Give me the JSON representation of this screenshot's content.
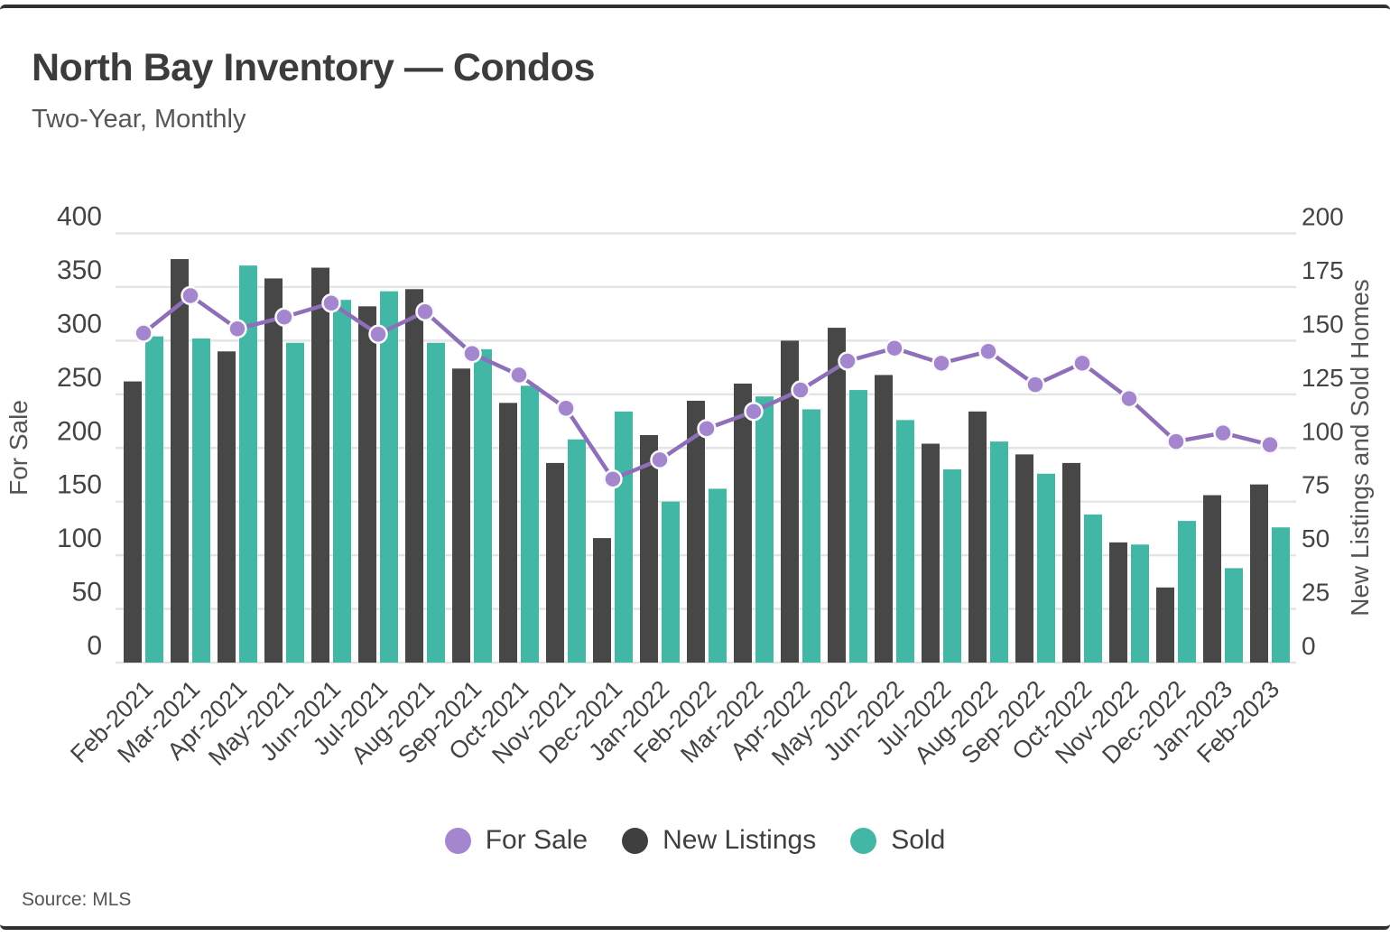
{
  "header": {
    "title": "North Bay Inventory — Condos",
    "subtitle": "Two-Year, Monthly"
  },
  "source_note": "Source: MLS",
  "legend": {
    "items": [
      {
        "label": "For Sale",
        "color": "#a486ce"
      },
      {
        "label": "New Listings",
        "color": "#3f3f3f"
      },
      {
        "label": "Sold",
        "color": "#43b7a6"
      }
    ]
  },
  "colors": {
    "bar_new_listings": "#474747",
    "bar_sold": "#43b7a6",
    "line_for_sale": "#8e6fb8",
    "dot_for_sale": "#a486ce",
    "dot_ring": "#fafafa",
    "grid": "#e4e4e4",
    "tick_text": "#444444",
    "axis_title_text": "#555555",
    "border": "#303030"
  },
  "chart_data": {
    "type": "combo_bar_line",
    "title": "North Bay Inventory — Condos",
    "subtitle": "Two-Year, Monthly",
    "categories": [
      "Feb-2021",
      "Mar-2021",
      "Apr-2021",
      "May-2021",
      "Jun-2021",
      "Jul-2021",
      "Aug-2021",
      "Sep-2021",
      "Oct-2021",
      "Nov-2021",
      "Dec-2021",
      "Jan-2022",
      "Feb-2022",
      "Mar-2022",
      "Apr-2022",
      "May-2022",
      "Jun-2022",
      "Jul-2022",
      "Aug-2022",
      "Sep-2022",
      "Oct-2022",
      "Nov-2022",
      "Dec-2022",
      "Jan-2023",
      "Feb-2023"
    ],
    "series": [
      {
        "name": "For Sale",
        "type": "line",
        "axis": "left",
        "values": [
          307,
          342,
          311,
          322,
          335,
          306,
          327,
          288,
          268,
          237,
          171,
          189,
          218,
          234,
          254,
          281,
          293,
          279,
          290,
          259,
          279,
          246,
          206,
          214,
          203
        ]
      },
      {
        "name": "New Listings",
        "type": "bar",
        "axis": "right",
        "values": [
          131,
          188,
          145,
          179,
          184,
          166,
          174,
          137,
          121,
          93,
          58,
          106,
          122,
          130,
          150,
          156,
          134,
          102,
          117,
          97,
          93,
          56,
          35,
          78,
          83
        ]
      },
      {
        "name": "Sold",
        "type": "bar",
        "axis": "right",
        "values": [
          152,
          151,
          185,
          149,
          169,
          173,
          149,
          146,
          129,
          104,
          117,
          75,
          81,
          124,
          118,
          127,
          113,
          90,
          103,
          88,
          69,
          55,
          66,
          44,
          63
        ]
      }
    ],
    "left_axis": {
      "label": "For Sale",
      "min": 0,
      "max": 400,
      "step": 50,
      "ticks": [
        0,
        50,
        100,
        150,
        200,
        250,
        300,
        350,
        400
      ]
    },
    "right_axis": {
      "label": "New Listings and Sold Homes",
      "min": 0,
      "max": 200,
      "step": 25,
      "ticks": [
        0,
        25,
        50,
        75,
        100,
        125,
        150,
        175,
        200
      ]
    },
    "grid": "horizontal",
    "legend_position": "bottom"
  }
}
